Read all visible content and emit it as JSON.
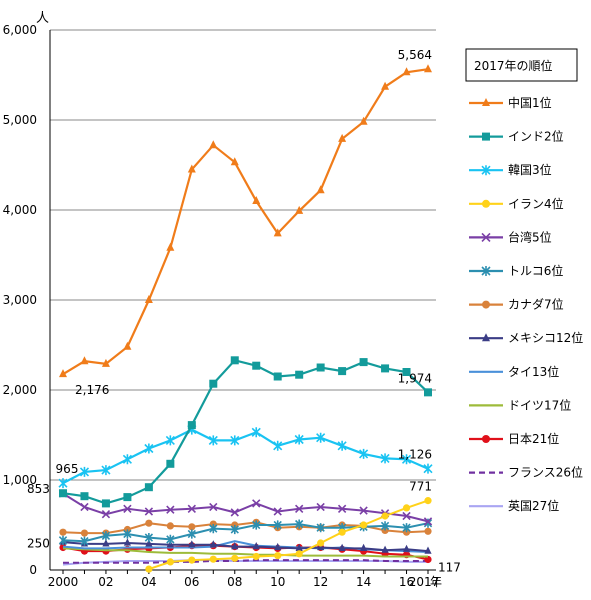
{
  "chart_data": {
    "type": "line",
    "title": "",
    "xlabel": "",
    "ylabel": "",
    "y_unit": "人",
    "x_unit": "年",
    "x": [
      2000,
      2001,
      2002,
      2003,
      2004,
      2005,
      2006,
      2007,
      2008,
      2009,
      2010,
      2011,
      2012,
      2013,
      2014,
      2015,
      2016,
      2017
    ],
    "x_tick_labels": [
      "2000",
      "",
      "02",
      "",
      "04",
      "",
      "06",
      "",
      "08",
      "",
      "10",
      "",
      "12",
      "",
      "14",
      "",
      "16",
      "2017年"
    ],
    "ylim": [
      0,
      6000
    ],
    "y_ticks": [
      0,
      1000,
      2000,
      3000,
      4000,
      5000,
      6000
    ],
    "y_tick_labels": [
      "0",
      "1,000",
      "2,000",
      "3,000",
      "4,000",
      "5,000",
      "6,000"
    ],
    "grid": "horizontal",
    "legend": {
      "title": "2017年の順位",
      "position": "right"
    },
    "series": [
      {
        "name": "中国1位",
        "color": "#F07C1A",
        "marker": "triangle",
        "dash": "",
        "values": [
          2176,
          2320,
          2290,
          2480,
          3000,
          3580,
          4450,
          4720,
          4530,
          4100,
          3740,
          3990,
          4220,
          4790,
          4980,
          5370,
          5530,
          5564
        ]
      },
      {
        "name": "インド2位",
        "color": "#139B9B",
        "marker": "square",
        "dash": "",
        "values": [
          853,
          820,
          740,
          810,
          920,
          1180,
          1610,
          2070,
          2330,
          2270,
          2150,
          2170,
          2250,
          2210,
          2310,
          2240,
          2200,
          1974
        ]
      },
      {
        "name": "韓国3位",
        "color": "#19C3F2",
        "marker": "asterisk",
        "dash": "",
        "values": [
          965,
          1090,
          1110,
          1230,
          1350,
          1440,
          1560,
          1440,
          1440,
          1530,
          1380,
          1450,
          1470,
          1380,
          1290,
          1240,
          1230,
          1126
        ]
      },
      {
        "name": "イラン4位",
        "color": "#FFD21A",
        "marker": "circle",
        "dash": "",
        "values": [
          null,
          null,
          null,
          null,
          10,
          90,
          110,
          120,
          130,
          150,
          160,
          180,
          300,
          420,
          500,
          600,
          690,
          771
        ]
      },
      {
        "name": "台湾5位",
        "color": "#7A3FA6",
        "marker": "x",
        "dash": "",
        "values": [
          850,
          700,
          620,
          680,
          650,
          670,
          680,
          700,
          640,
          740,
          650,
          680,
          700,
          680,
          660,
          630,
          600,
          540
        ]
      },
      {
        "name": "トルコ6位",
        "color": "#2C8FB0",
        "marker": "asterisk",
        "dash": "",
        "values": [
          330,
          320,
          380,
          400,
          360,
          340,
          400,
          460,
          450,
          500,
          500,
          510,
          470,
          470,
          480,
          490,
          470,
          520
        ]
      },
      {
        "name": "カナダ7位",
        "color": "#D9823B",
        "marker": "circle",
        "dash": "",
        "values": [
          420,
          410,
          410,
          450,
          520,
          490,
          480,
          510,
          500,
          530,
          470,
          480,
          470,
          500,
          490,
          440,
          420,
          430
        ]
      },
      {
        "name": "メキシコ12位",
        "color": "#3B3D86",
        "marker": "triangle",
        "dash": "",
        "values": [
          310,
          290,
          290,
          300,
          290,
          280,
          280,
          280,
          260,
          260,
          250,
          240,
          250,
          240,
          240,
          220,
          230,
          210
        ]
      },
      {
        "name": "タイ13位",
        "color": "#4A90D9",
        "marker": "none",
        "dash": "",
        "values": [
          260,
          240,
          240,
          250,
          250,
          250,
          250,
          260,
          320,
          270,
          260,
          250,
          240,
          250,
          230,
          220,
          210,
          200
        ]
      },
      {
        "name": "ドイツ17位",
        "color": "#9DBB3A",
        "marker": "none",
        "dash": "",
        "values": [
          240,
          230,
          220,
          220,
          200,
          190,
          190,
          180,
          180,
          170,
          170,
          160,
          160,
          160,
          160,
          150,
          150,
          150
        ]
      },
      {
        "name": "日本21位",
        "color": "#E0101A",
        "marker": "circle",
        "dash": "",
        "values": [
          250,
          210,
          210,
          230,
          240,
          250,
          270,
          270,
          260,
          250,
          240,
          250,
          250,
          230,
          210,
          180,
          170,
          117
        ]
      },
      {
        "name": "フランス26位",
        "color": "#7030A0",
        "marker": "none",
        "dash": "6,4",
        "values": [
          80,
          80,
          80,
          80,
          80,
          90,
          90,
          100,
          100,
          110,
          110,
          110,
          110,
          110,
          110,
          100,
          100,
          100
        ]
      },
      {
        "name": "英国27位",
        "color": "#A9A5F2",
        "marker": "none",
        "dash": "",
        "values": [
          60,
          80,
          90,
          100,
          100,
          100,
          110,
          110,
          100,
          100,
          100,
          100,
          100,
          100,
          100,
          100,
          90,
          90
        ]
      }
    ],
    "annotations": [
      {
        "label": "5,564",
        "series": 0,
        "point": "last",
        "at": "above"
      },
      {
        "label": "2,176",
        "series": 0,
        "point": "first",
        "at": "below-right"
      },
      {
        "label": "1,974",
        "series": 1,
        "point": "last",
        "at": "above"
      },
      {
        "label": "853",
        "series": 1,
        "point": "first",
        "at": "left"
      },
      {
        "label": "1,126",
        "series": 2,
        "point": "last",
        "at": "above"
      },
      {
        "label": "965",
        "series": 2,
        "point": "first",
        "at": "above"
      },
      {
        "label": "771",
        "series": 3,
        "point": "last",
        "at": "above"
      },
      {
        "label": "250",
        "series": 10,
        "point": "first",
        "at": "left"
      },
      {
        "label": "117",
        "series": 10,
        "point": "last",
        "at": "right"
      }
    ]
  }
}
